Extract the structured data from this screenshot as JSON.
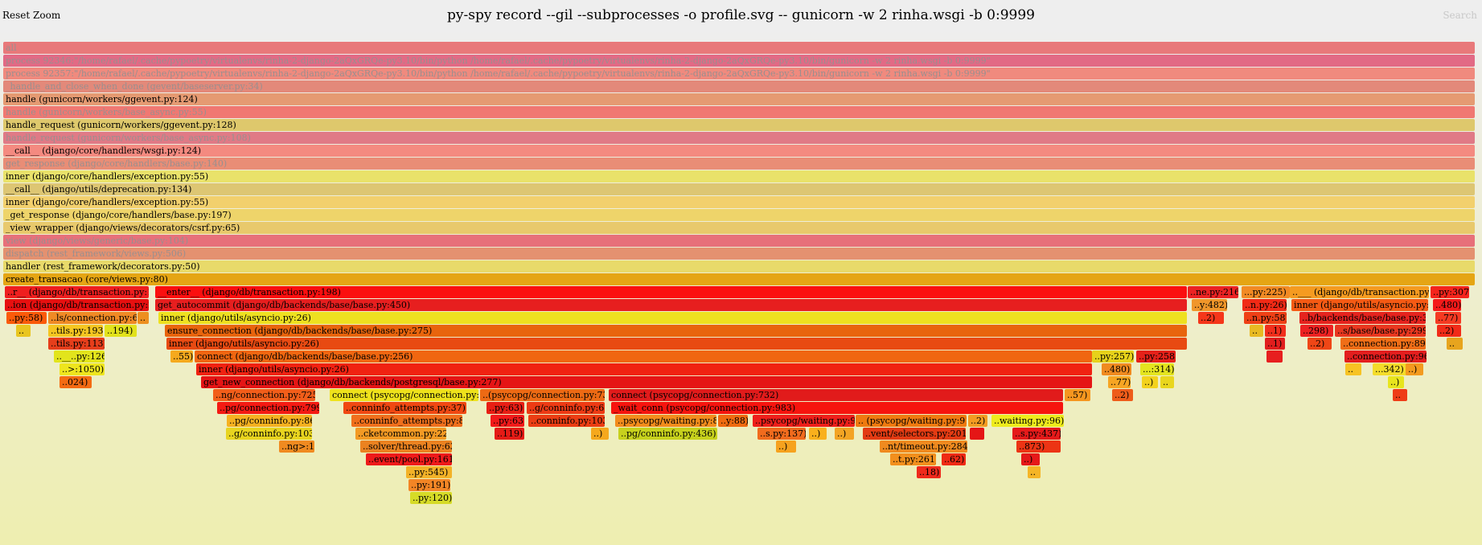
{
  "header": {
    "reset_zoom": "Reset Zoom",
    "title": "py-spy record --gil --subprocesses -o profile.svg -- gunicorn -w 2 rinha.wsgi -b 0:9999",
    "search": "Search"
  },
  "frames": [
    {
      "label": "all",
      "color": "#e8797a",
      "faded": true
    },
    {
      "label": "process 92346:\"/home/rafael/.cache/pypoetry/virtualenvs/rinha-2-django-2aQxGRQe-py3.10/bin/python /home/rafael/.cache/pypoetry/virtualenvs/rinha-2-django-2aQxGRQe-py3.10/bin/gunicorn -w 2 rinha.wsgi -b 0:9999\"",
      "color": "#e26a85",
      "faded": true
    },
    {
      "label": "process 92357:\"/home/rafael/.cache/pypoetry/virtualenvs/rinha-2-django-2aQxGRQe-py3.10/bin/python /home/rafael/.cache/pypoetry/virtualenvs/rinha-2-django-2aQxGRQe-py3.10/bin/gunicorn -w 2 rinha.wsgi -b 0:9999\"",
      "color": "#f08a7e",
      "faded": true
    },
    {
      "label": "_handle_and_close_when_done (gevent/baseserver.py:34)",
      "color": "#e3897a",
      "faded": true
    },
    {
      "label": "handle (gunicorn/workers/ggevent.py:124)",
      "color": "#e59a72",
      "faded": false
    },
    {
      "label": "handle (gunicorn/workers/base_async.py:55)",
      "color": "#f07872",
      "faded": true
    },
    {
      "label": "handle_request (gunicorn/workers/ggevent.py:128)",
      "color": "#dec86c",
      "faded": false
    },
    {
      "label": "handle_request (gunicorn/workers/base_async.py:108)",
      "color": "#e07a86",
      "faded": true
    },
    {
      "label": "__call__ (django/core/handlers/wsgi.py:124)",
      "color": "#f48a80",
      "faded": false
    },
    {
      "label": "get_response (django/core/handlers/base.py:140)",
      "color": "#e98d76",
      "faded": true
    },
    {
      "label": "inner (django/core/handlers/exception.py:55)",
      "color": "#e9e26a",
      "faded": false
    },
    {
      "label": "__call__ (django/utils/deprecation.py:134)",
      "color": "#ddc673",
      "faded": false
    },
    {
      "label": "inner (django/core/handlers/exception.py:55)",
      "color": "#f2d06d",
      "faded": false
    },
    {
      "label": "_get_response (django/core/handlers/base.py:197)",
      "color": "#eed46a",
      "faded": false
    },
    {
      "label": "_view_wrapper (django/views/decorators/csrf.py:65)",
      "color": "#e8c96c",
      "faded": false
    },
    {
      "label": "view (django/views/generic/base.py:104)",
      "color": "#e7707a",
      "faded": true
    },
    {
      "label": "dispatch (rest_framework/views.py:506)",
      "color": "#e49170",
      "faded": true
    },
    {
      "label": "handler (rest_framework/decorators.py:50)",
      "color": "#e8da6a",
      "faded": false
    },
    {
      "label": "create_transacao (core/views.py:80)",
      "color": "#e5a514",
      "faded": false
    },
    {
      "label": "..r__ (django/db/transaction.py:183)",
      "color": "#ef1f1f",
      "faded": false
    },
    {
      "label": "__enter__ (django/db/transaction.py:198)",
      "color": "#fb0f0f",
      "faded": false
    },
    {
      "label": "..ion (django/db/transaction.py:25)",
      "color": "#e71010",
      "faded": false
    },
    {
      "label": "get_autocommit (django/db/backends/base/base.py:450)",
      "color": "#e71f1f",
      "faded": false
    },
    {
      "label": "..py:58)",
      "color": "#fb5a0a",
      "faded": false
    },
    {
      "label": "..ls/connection.py:62)",
      "color": "#f08a25",
      "faded": false
    },
    {
      "label": "..",
      "color": "#ed8f1f",
      "faded": false
    },
    {
      "label": "inner (django/utils/asyncio.py:26)",
      "color": "#eee020",
      "faded": false
    },
    {
      "label": "..",
      "color": "#e9c520",
      "faded": false
    },
    {
      "label": "..tils.py:193)",
      "color": "#f5c621",
      "faded": false
    },
    {
      "label": "..194)",
      "color": "#e2e21c",
      "faded": false
    },
    {
      "label": "ensure_connection (django/db/backends/base/base.py:275)",
      "color": "#e8640d",
      "faded": false
    },
    {
      "label": "..tils.py:113)",
      "color": "#e63e1b",
      "faded": false
    },
    {
      "label": "inner (django/utils/asyncio.py:26)",
      "color": "#e84a12",
      "faded": false
    },
    {
      "label": "..__..py:126)",
      "color": "#e2e41c",
      "faded": false
    },
    {
      "label": "..55)",
      "color": "#f5a91e",
      "faded": false
    },
    {
      "label": "connect (django/db/backends/base/base.py:256)",
      "color": "#f06610",
      "faded": false
    },
    {
      "label": "..>:1050)",
      "color": "#eee51e",
      "faded": false
    },
    {
      "label": "inner (django/utils/asyncio.py:26)",
      "color": "#f02211",
      "faded": false
    },
    {
      "label": "..024)",
      "color": "#f46b12",
      "faded": false
    },
    {
      "label": "get_new_connection (django/db/backends/postgresql/base.py:277)",
      "color": "#e51515",
      "faded": false
    },
    {
      "label": "..ng/connection.py:725)",
      "color": "#f25e1a",
      "faded": false
    },
    {
      "label": "connect (psycopg/connection.py:728)",
      "color": "#eee21c",
      "faded": false
    },
    {
      "label": "..(psycopg/connection.py:731)",
      "color": "#ed6a14",
      "faded": false
    },
    {
      "label": "connect (psycopg/connection.py:732)",
      "color": "#e11b1b",
      "faded": false
    },
    {
      "label": "..pg/connection.py:799)",
      "color": "#f41a13",
      "faded": false
    },
    {
      "label": "..conninfo_attempts.py:37)",
      "color": "#f04812",
      "faded": false
    },
    {
      "label": "..py:63)",
      "color": "#e81e14",
      "faded": false
    },
    {
      "label": "..g/conninfo.py:66)",
      "color": "#ed3a14",
      "faded": false
    },
    {
      "label": "_wait_conn (psycopg/connection.py:983)",
      "color": "#f6140e",
      "faded": false
    },
    {
      "label": "..pg/conninfo.py:86)",
      "color": "#f6b120",
      "faded": false
    },
    {
      "label": "..conninfo_attempts.py:87)",
      "color": "#f06f1c",
      "faded": false
    },
    {
      "label": "..py:63)",
      "color": "#f21a1a",
      "faded": false
    },
    {
      "label": "..conninfo.py:103)",
      "color": "#eb3d13",
      "faded": false
    },
    {
      "label": "..psycopg/waiting.py:85)",
      "color": "#f38c1c",
      "faded": false
    },
    {
      "label": "..y:88)",
      "color": "#ef6a10",
      "faded": false
    },
    {
      "label": "..psycopg/waiting.py:90)",
      "color": "#ee1f1a",
      "faded": false
    },
    {
      "label": ".. (psycopg/waiting.py:91)",
      "color": "#ef7a10",
      "faded": false
    },
    {
      "label": "..2)",
      "color": "#f39c22",
      "faded": false
    },
    {
      "label": "..waiting.py:96)",
      "color": "#eeeb1c",
      "faded": false
    },
    {
      "label": "..g/conninfo.py:103)",
      "color": "#e8d41f",
      "faded": false
    },
    {
      "label": "..cketcommon.py:225)",
      "color": "#f39a24",
      "faded": false
    },
    {
      "label": "..119)",
      "color": "#e51b16",
      "faded": false
    },
    {
      "label": "..)",
      "color": "#f5a81d",
      "faded": false
    },
    {
      "label": "..pg/conninfo.py:436)",
      "color": "#c7d11d",
      "faded": false
    },
    {
      "label": "..s.py:137)",
      "color": "#f16b1d",
      "faded": false
    },
    {
      "label": "..)",
      "color": "#f9b01c",
      "faded": false
    },
    {
      "label": "..)",
      "color": "#f3a423",
      "faded": false
    },
    {
      "label": "..vent/selectors.py:201)",
      "color": "#e33b13",
      "faded": false
    },
    {
      "label": "",
      "color": "#e51616",
      "faded": false
    },
    {
      "label": "..s.py:437)",
      "color": "#e51a1a",
      "faded": false
    },
    {
      "label": "..ng>:1)",
      "color": "#f08a20",
      "faded": false
    },
    {
      "label": "..solver/thread.py:63)",
      "color": "#eb8220",
      "faded": false
    },
    {
      "label": "..)",
      "color": "#f6a21e",
      "faded": false
    },
    {
      "label": "..nt/timeout.py:284)",
      "color": "#ef8a1f",
      "faded": false
    },
    {
      "label": "..873)",
      "color": "#ec3414",
      "faded": false
    },
    {
      "label": "..event/pool.py:161)",
      "color": "#ee1a1a",
      "faded": false
    },
    {
      "label": "..t.py:261)",
      "color": "#f28f1d",
      "faded": false
    },
    {
      "label": "..62)",
      "color": "#ef2a14",
      "faded": false
    },
    {
      "label": "..)",
      "color": "#e51919",
      "faded": false
    },
    {
      "label": "..py:545)",
      "color": "#f3b228",
      "faded": false
    },
    {
      "label": "..18)",
      "color": "#ef2a1c",
      "faded": false
    },
    {
      "label": "..",
      "color": "#f5b526",
      "faded": false
    },
    {
      "label": "..py:191)",
      "color": "#f38525",
      "faded": false
    },
    {
      "label": "..py:120)",
      "color": "#d6db27",
      "faded": false
    },
    {
      "label": "..ne.py:216)",
      "color": "#ec2323",
      "faded": false
    },
    {
      "label": "...py:225)",
      "color": "#f28a24",
      "faded": false
    },
    {
      "label": "..___ (django/db/transaction.py:263)",
      "color": "#f59b20",
      "faded": false
    },
    {
      "label": "..py:307)",
      "color": "#f5241c",
      "faded": false
    },
    {
      "label": "..y:482)",
      "color": "#f0962a",
      "faded": false
    },
    {
      "label": "..n.py:26)",
      "color": "#f12a16",
      "faded": false
    },
    {
      "label": "inner (django/utils/asyncio.py:26)",
      "color": "#f55a14",
      "faded": false
    },
    {
      "label": "..480)",
      "color": "#f51a1a",
      "faded": false
    },
    {
      "label": "..2)",
      "color": "#f5361a",
      "faded": false
    },
    {
      "label": "..n.py:58)",
      "color": "#ef4016",
      "faded": false
    },
    {
      "label": "..b/backends/base/base.py:323)",
      "color": "#e5231e",
      "faded": false
    },
    {
      "label": "..77)",
      "color": "#f53a22",
      "faded": false
    },
    {
      "label": "..",
      "color": "#e8ba22",
      "faded": false
    },
    {
      "label": "..1)",
      "color": "#f12e1c",
      "faded": false
    },
    {
      "label": "..298)",
      "color": "#ed2222",
      "faded": false
    },
    {
      "label": "..s/base/base.py:299)",
      "color": "#e9371f",
      "faded": false
    },
    {
      "label": "..2)",
      "color": "#f12b18",
      "faded": false
    },
    {
      "label": "..1)",
      "color": "#e11e1e",
      "faded": false
    },
    {
      "label": "..2)",
      "color": "#ef4616",
      "faded": false
    },
    {
      "label": "..connection.py:896)",
      "color": "#f06e17",
      "faded": false
    },
    {
      "label": "..",
      "color": "#e7a41e",
      "faded": false
    },
    {
      "label": "",
      "color": "#e71f1f",
      "faded": false
    },
    {
      "label": "..connection.py:969)",
      "color": "#e31e1e",
      "faded": false
    },
    {
      "label": "..py:257)",
      "color": "#e7d21a",
      "faded": false
    },
    {
      "label": "..py:258)",
      "color": "#e52119",
      "faded": false
    },
    {
      "label": "..480)",
      "color": "#f08a1f",
      "faded": false
    },
    {
      "label": "...:314)",
      "color": "#e4e41f",
      "faded": false
    },
    {
      "label": "..77)",
      "color": "#f7a523",
      "faded": false
    },
    {
      "label": "..)",
      "color": "#f3d21d",
      "faded": false
    },
    {
      "label": "..",
      "color": "#e9d61e",
      "faded": false
    },
    {
      "label": "..57)",
      "color": "#f5961f",
      "faded": false
    },
    {
      "label": "..2)",
      "color": "#ee5c1a",
      "faded": false
    },
    {
      "label": "..",
      "color": "#f7c323",
      "faded": false
    },
    {
      "label": "...342)",
      "color": "#f3dc2a",
      "faded": false
    },
    {
      "label": "..)",
      "color": "#f39a1f",
      "faded": false
    },
    {
      "label": "..)",
      "color": "#e8e51e",
      "faded": false
    },
    {
      "label": "..",
      "color": "#ef3c17",
      "faded": false
    }
  ]
}
